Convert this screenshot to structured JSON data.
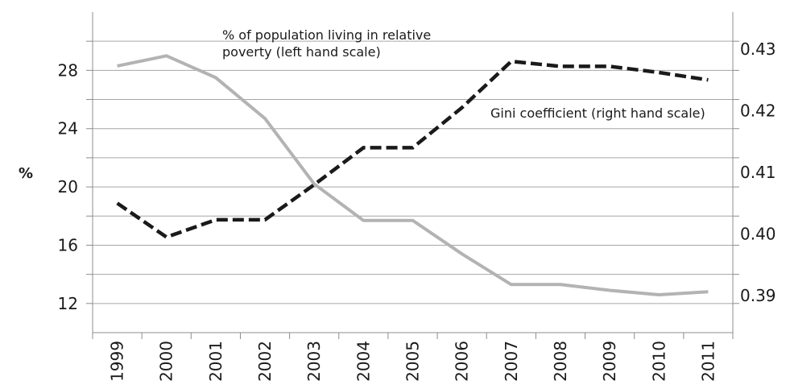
{
  "chart_data": {
    "type": "line",
    "x": [
      "1999",
      "2000",
      "2001",
      "2002",
      "2003",
      "2004",
      "2005",
      "2006",
      "2007",
      "2008",
      "2009",
      "2010",
      "2011"
    ],
    "ylabel": "%",
    "ylim_left": [
      10,
      32
    ],
    "ylim_right": [
      0.384,
      0.436
    ],
    "left_ticks": [
      "12",
      "16",
      "20",
      "24",
      "28"
    ],
    "right_ticks": [
      "0.39",
      "0.40",
      "0.41",
      "0.42",
      "0.43"
    ],
    "grid": true,
    "series": [
      {
        "axis": "left",
        "style": "solid",
        "color": "#b3b3b3",
        "label": "% of population living in relative\npoverty (left hand scale)",
        "values": [
          28.3,
          29.0,
          27.5,
          24.7,
          20.2,
          17.7,
          17.7,
          15.4,
          13.3,
          13.3,
          12.9,
          12.6,
          12.8
        ]
      },
      {
        "axis": "right",
        "style": "dashed",
        "color": "#1a1a1a",
        "label": "Gini coefficient (right hand scale)",
        "values": [
          0.405,
          0.3995,
          0.4023,
          0.4023,
          0.408,
          0.414,
          0.414,
          0.4205,
          0.428,
          0.4272,
          0.4272,
          0.4262,
          0.425
        ]
      }
    ]
  }
}
